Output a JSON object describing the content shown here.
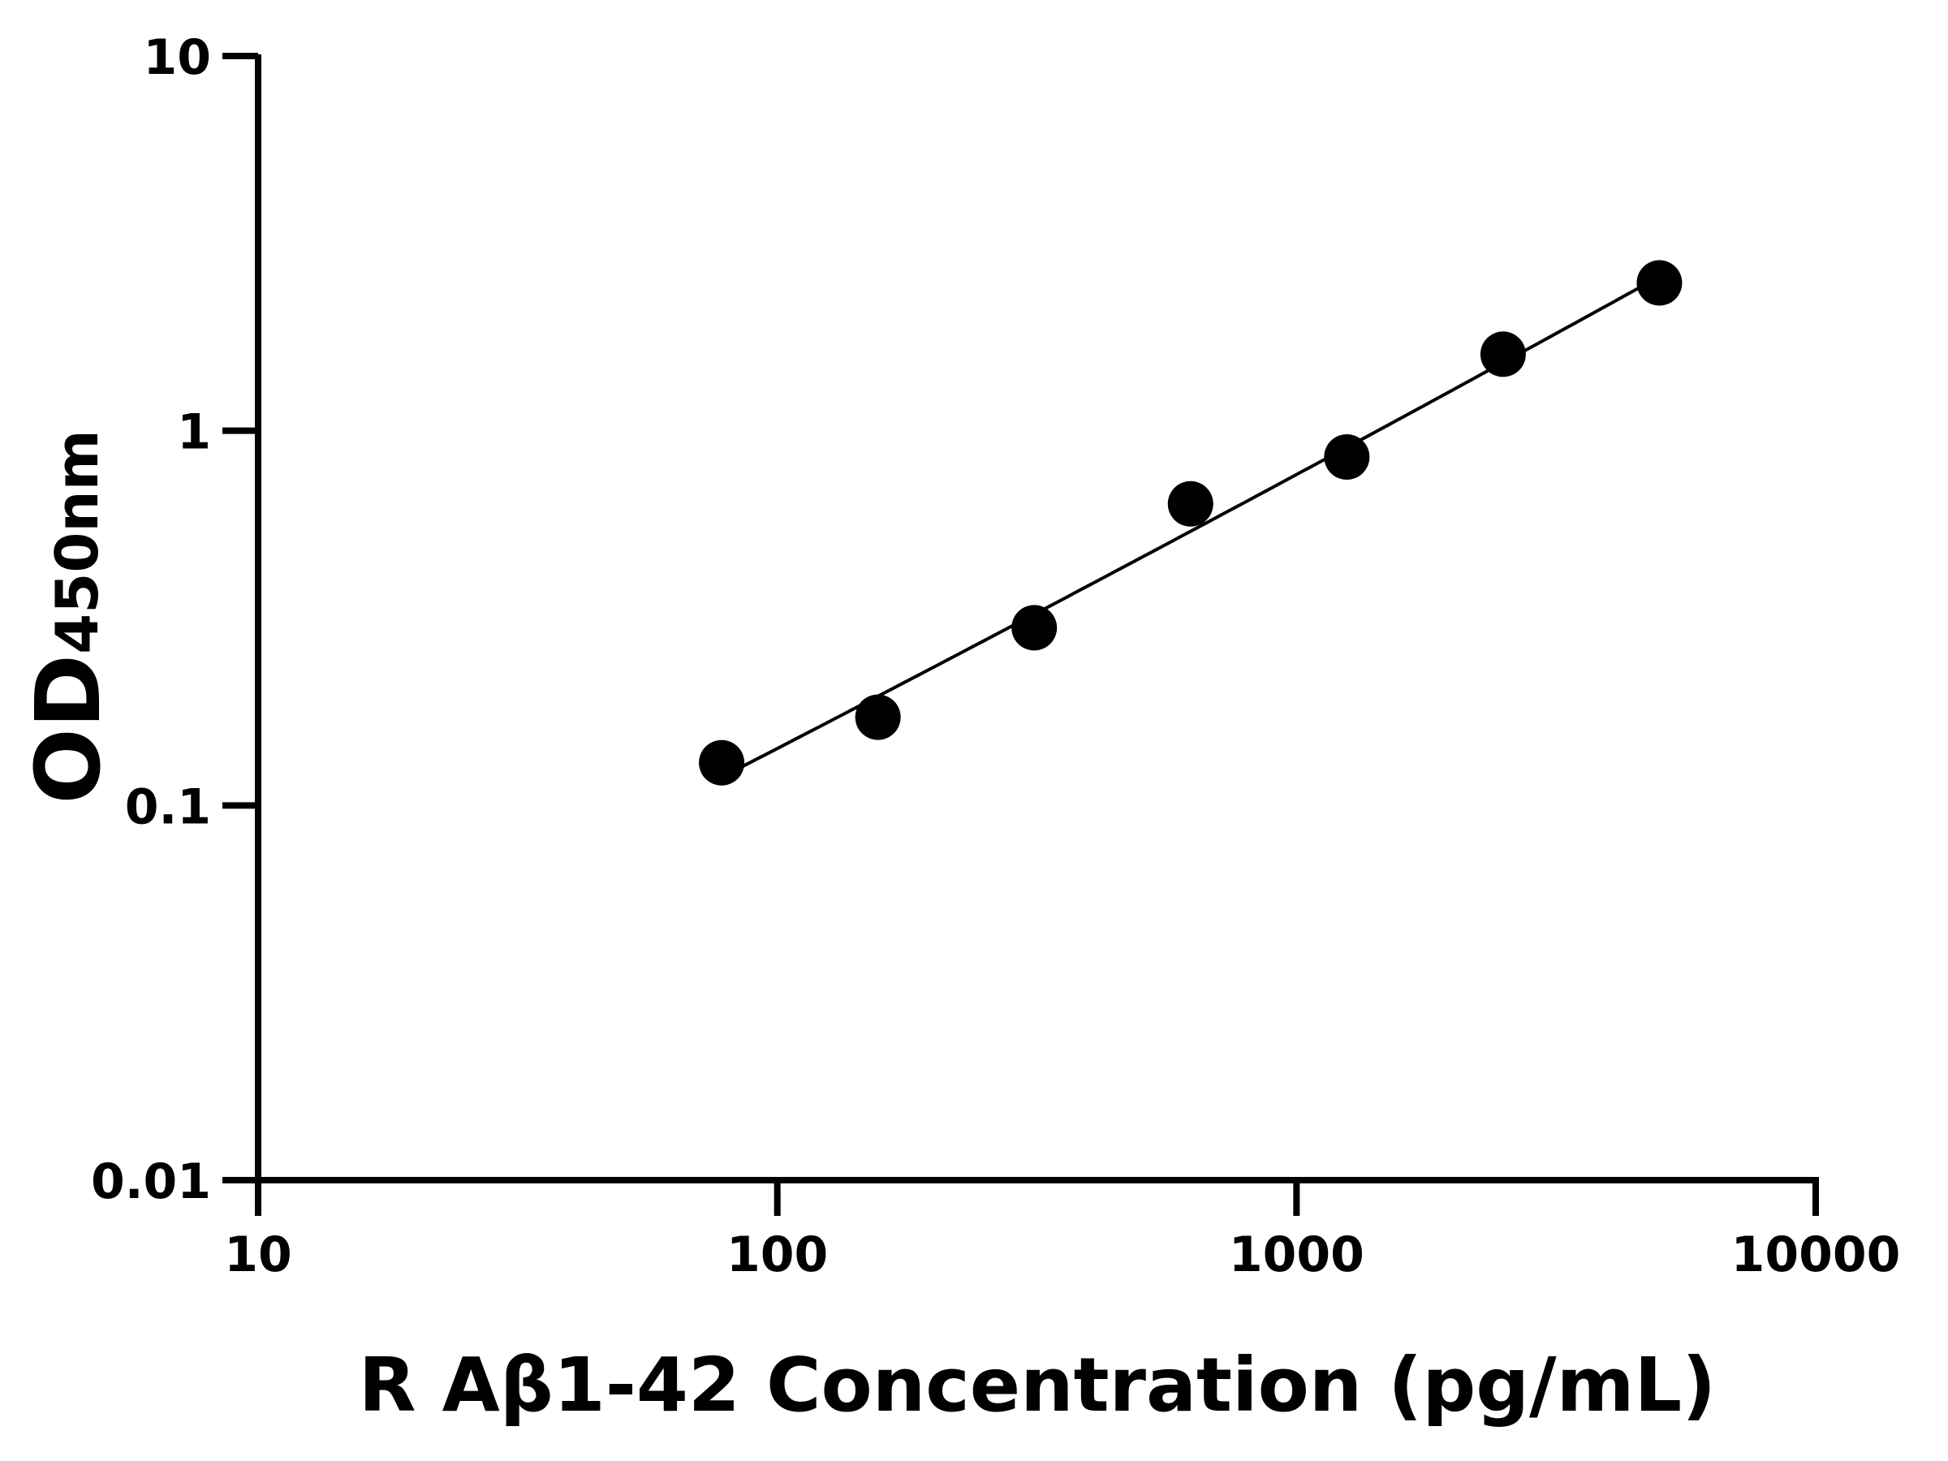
{
  "chart_data": {
    "type": "scatter",
    "title": "",
    "xlabel": "R Aβ1-42 Concentration (pg/mL)",
    "ylabel_main": "OD",
    "ylabel_sub": "450nm",
    "x_scale": "log",
    "y_scale": "log",
    "xlim": [
      10,
      10000
    ],
    "ylim": [
      0.01,
      10
    ],
    "x_ticks": [
      10,
      100,
      1000,
      10000
    ],
    "x_tick_labels": [
      "10",
      "100",
      "1000",
      "10000"
    ],
    "y_ticks": [
      0.01,
      0.1,
      1,
      10
    ],
    "y_tick_labels": [
      "0.01",
      "0.1",
      "1",
      "10"
    ],
    "grid": false,
    "fit_curve": true,
    "marker_color": "#000000",
    "line_color": "#000000",
    "points": [
      {
        "x": 78.125,
        "y": 0.13
      },
      {
        "x": 156.25,
        "y": 0.172
      },
      {
        "x": 312.5,
        "y": 0.298
      },
      {
        "x": 625,
        "y": 0.638
      },
      {
        "x": 1250,
        "y": 0.851
      },
      {
        "x": 2500,
        "y": 1.6
      },
      {
        "x": 5000,
        "y": 2.48
      }
    ]
  }
}
